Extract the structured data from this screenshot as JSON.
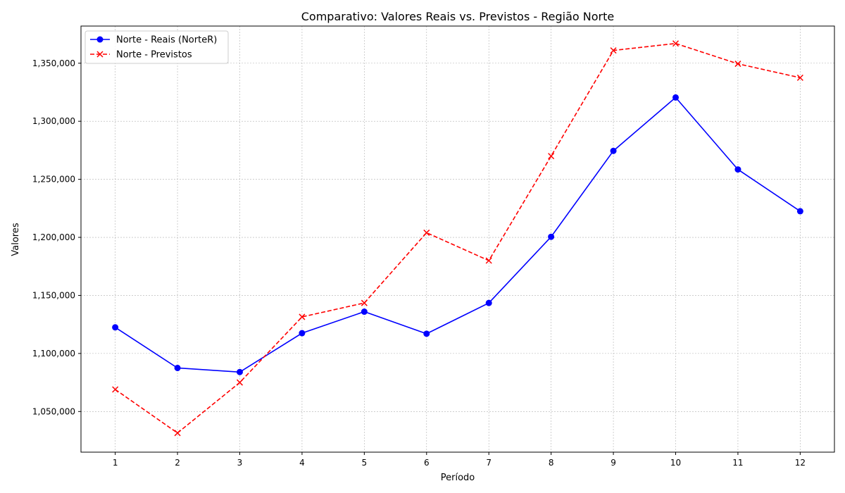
{
  "chart_data": {
    "type": "line",
    "title": "Comparativo: Valores Reais vs. Previstos - Região Norte",
    "xlabel": "Período",
    "ylabel": "Valores",
    "x": [
      1,
      2,
      3,
      4,
      5,
      6,
      7,
      8,
      9,
      10,
      11,
      12
    ],
    "x_tick_labels": [
      "1",
      "2",
      "3",
      "4",
      "5",
      "6",
      "7",
      "8",
      "9",
      "10",
      "11",
      "12"
    ],
    "xlim": [
      0.45,
      12.55
    ],
    "ylim": [
      1015000,
      1382000
    ],
    "y_ticks": [
      1050000,
      1100000,
      1150000,
      1200000,
      1250000,
      1300000,
      1350000
    ],
    "y_tick_labels": [
      "1,050,000",
      "1,100,000",
      "1,150,000",
      "1,200,000",
      "1,250,000",
      "1,300,000",
      "1,350,000"
    ],
    "grid": true,
    "legend_position": "top-left",
    "series": [
      {
        "name": "Norte - Reais (NorteR)",
        "color": "#0000ff",
        "style": "solid",
        "marker": "circle",
        "values": [
          1122500,
          1087500,
          1084000,
          1117500,
          1136000,
          1117000,
          1143500,
          1200500,
          1274500,
          1320500,
          1258500,
          1222500
        ]
      },
      {
        "name": "Norte - Previstos",
        "color": "#ff0000",
        "style": "dashed",
        "marker": "x",
        "values": [
          1069000,
          1031500,
          1075000,
          1131500,
          1143500,
          1204000,
          1180000,
          1270000,
          1361000,
          1367000,
          1349500,
          1337500
        ]
      }
    ]
  }
}
